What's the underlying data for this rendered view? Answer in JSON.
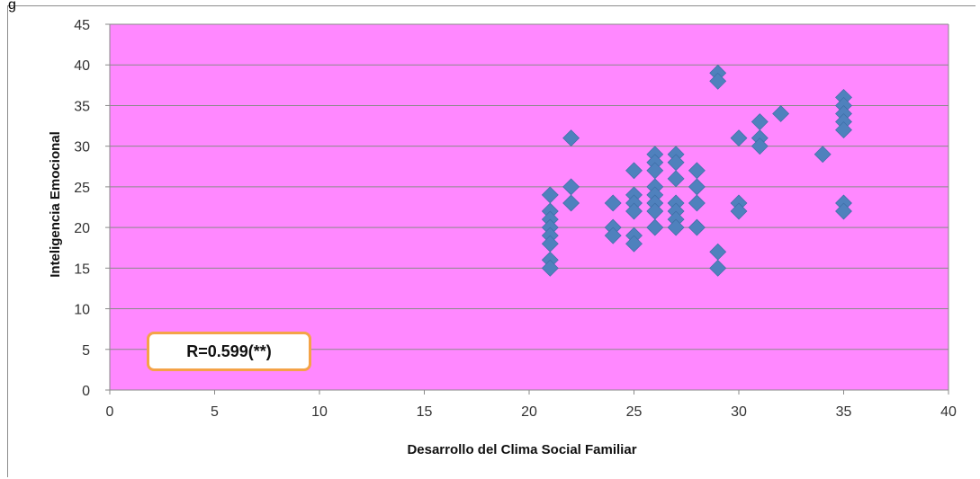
{
  "corner_text": "g",
  "chart_data": {
    "type": "scatter",
    "title": "",
    "xlabel": "Desarrollo del Clima Social Familiar",
    "ylabel": "Inteligencia Emocional",
    "xlim": [
      0,
      40
    ],
    "ylim": [
      0,
      45
    ],
    "xticks": [
      0,
      5,
      10,
      15,
      20,
      25,
      30,
      35,
      40
    ],
    "yticks": [
      0,
      5,
      10,
      15,
      20,
      25,
      30,
      35,
      40,
      45
    ],
    "grid": true,
    "plot_background": "#ff88ff",
    "marker_color": "#4f81bd",
    "marker": "diamond",
    "annotation": "R=0.599(**)",
    "points": [
      [
        21,
        24
      ],
      [
        21,
        22
      ],
      [
        21,
        21
      ],
      [
        21,
        20
      ],
      [
        21,
        19
      ],
      [
        21,
        18
      ],
      [
        21,
        16
      ],
      [
        21,
        15
      ],
      [
        22,
        31
      ],
      [
        22,
        25
      ],
      [
        22,
        23
      ],
      [
        24,
        23
      ],
      [
        24,
        20
      ],
      [
        24,
        19
      ],
      [
        25,
        27
      ],
      [
        25,
        24
      ],
      [
        25,
        23
      ],
      [
        25,
        22
      ],
      [
        25,
        19
      ],
      [
        25,
        18
      ],
      [
        26,
        29
      ],
      [
        26,
        28
      ],
      [
        26,
        27
      ],
      [
        26,
        25
      ],
      [
        26,
        24
      ],
      [
        26,
        23
      ],
      [
        26,
        22
      ],
      [
        26,
        20
      ],
      [
        27,
        29
      ],
      [
        27,
        28
      ],
      [
        27,
        26
      ],
      [
        27,
        23
      ],
      [
        27,
        22
      ],
      [
        27,
        21
      ],
      [
        27,
        20
      ],
      [
        28,
        27
      ],
      [
        28,
        25
      ],
      [
        28,
        23
      ],
      [
        28,
        20
      ],
      [
        29,
        39
      ],
      [
        29,
        38
      ],
      [
        29,
        17
      ],
      [
        29,
        15
      ],
      [
        30,
        31
      ],
      [
        30,
        23
      ],
      [
        30,
        22
      ],
      [
        31,
        33
      ],
      [
        31,
        31
      ],
      [
        31,
        30
      ],
      [
        32,
        34
      ],
      [
        34,
        29
      ],
      [
        35,
        36
      ],
      [
        35,
        35
      ],
      [
        35,
        34
      ],
      [
        35,
        33
      ],
      [
        35,
        32
      ],
      [
        35,
        23
      ],
      [
        35,
        22
      ]
    ]
  }
}
